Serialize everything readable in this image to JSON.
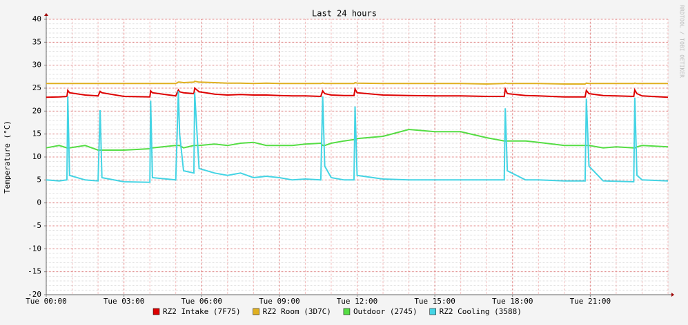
{
  "chart_data": {
    "type": "line",
    "title": "Last 24 hours",
    "y_label": "Temperature (°C)",
    "watermark": "RRDTOOL / TOBI OETIKER",
    "x": [
      0,
      0.5,
      0.8,
      0.83,
      0.9,
      1.5,
      2,
      2.08,
      2.15,
      3,
      4,
      4.03,
      4.1,
      5,
      5.1,
      5.15,
      5.3,
      5.7,
      5.73,
      5.9,
      6.5,
      7,
      7.5,
      8,
      8.5,
      9,
      9.5,
      10,
      10.6,
      10.67,
      10.75,
      11,
      11.5,
      11.88,
      11.92,
      12,
      13,
      14,
      15,
      16,
      17,
      17.68,
      17.72,
      17.8,
      18.5,
      19,
      20,
      20.8,
      20.85,
      20.95,
      21.5,
      22,
      22.68,
      22.72,
      22.8,
      23,
      24
    ],
    "xlim": [
      0,
      24
    ],
    "xticks": [
      {
        "value": 0,
        "label": "Tue 00:00"
      },
      {
        "value": 3,
        "label": "Tue 03:00"
      },
      {
        "value": 6,
        "label": "Tue 06:00"
      },
      {
        "value": 9,
        "label": "Tue 09:00"
      },
      {
        "value": 12,
        "label": "Tue 12:00"
      },
      {
        "value": 15,
        "label": "Tue 15:00"
      },
      {
        "value": 18,
        "label": "Tue 18:00"
      },
      {
        "value": 21,
        "label": "Tue 21:00"
      }
    ],
    "ylim": [
      -20,
      40
    ],
    "yticks": [
      -20,
      -15,
      -10,
      -5,
      0,
      5,
      10,
      15,
      20,
      25,
      30,
      35,
      40
    ],
    "grid": true,
    "series": [
      {
        "name": "RZ2 Intake (7F75)",
        "color": "#dd0000",
        "values": [
          23,
          23.1,
          23.2,
          24.5,
          24,
          23.5,
          23.3,
          24.3,
          24,
          23.2,
          23.1,
          24.4,
          24,
          23.3,
          24.6,
          24.2,
          24,
          23.8,
          25,
          24.2,
          23.7,
          23.5,
          23.6,
          23.5,
          23.5,
          23.4,
          23.3,
          23.3,
          23.2,
          24.4,
          23.8,
          23.5,
          23.4,
          23.4,
          24.8,
          24,
          23.5,
          23.4,
          23.3,
          23.3,
          23.2,
          23.2,
          24.8,
          23.8,
          23.4,
          23.3,
          23.1,
          23.1,
          24.5,
          23.8,
          23.4,
          23.3,
          23.2,
          24.6,
          23.8,
          23.3,
          23
        ]
      },
      {
        "name": "RZ2 Room (3D7C)",
        "color": "#e0b020",
        "values": [
          26,
          26,
          26,
          26,
          26,
          26,
          26,
          26,
          26,
          26,
          26,
          26,
          26,
          26,
          26.3,
          26.3,
          26.2,
          26.3,
          26.5,
          26.3,
          26.2,
          26.1,
          26.1,
          26,
          26.1,
          26,
          26,
          26,
          26,
          26.1,
          26,
          26,
          26,
          26,
          26.2,
          26.1,
          26,
          26,
          26,
          26,
          25.9,
          26,
          26.1,
          26,
          26,
          26,
          25.9,
          25.9,
          26.1,
          26,
          26,
          26,
          26,
          26.1,
          26,
          26,
          26
        ]
      },
      {
        "name": "Outdoor (2745)",
        "color": "#55dd44",
        "values": [
          12,
          12.5,
          12,
          12,
          12,
          12.5,
          11.5,
          11.5,
          11.5,
          11.5,
          11.8,
          12,
          12,
          12.5,
          12.5,
          12.5,
          12,
          12.5,
          12.5,
          12.5,
          12.8,
          12.5,
          13,
          13.2,
          12.5,
          12.5,
          12.5,
          12.8,
          13,
          12.5,
          12.5,
          13,
          13.5,
          13.8,
          14,
          14,
          14.5,
          16,
          15.5,
          15.5,
          14.2,
          13.5,
          13.5,
          13.5,
          13.5,
          13.2,
          12.5,
          12.5,
          12.5,
          12.5,
          12,
          12.2,
          12,
          12,
          12.2,
          12.5,
          12.2
        ]
      },
      {
        "name": "RZ2 Cooling (3588)",
        "color": "#44d4e4",
        "values": [
          5,
          4.8,
          5,
          23.2,
          6,
          5,
          4.8,
          20.2,
          5.5,
          4.6,
          4.5,
          22.3,
          5.5,
          5,
          24.4,
          15,
          7,
          6.5,
          24,
          7.5,
          6.5,
          6,
          6.5,
          5.5,
          5.8,
          5.5,
          5,
          5.2,
          5,
          23.2,
          8,
          5.5,
          5,
          5,
          21,
          6,
          5.2,
          5,
          5,
          5,
          5,
          5,
          20.6,
          7,
          5,
          5,
          4.8,
          4.8,
          22.7,
          8,
          4.8,
          4.7,
          4.6,
          22.9,
          6,
          5,
          4.8
        ]
      }
    ]
  }
}
